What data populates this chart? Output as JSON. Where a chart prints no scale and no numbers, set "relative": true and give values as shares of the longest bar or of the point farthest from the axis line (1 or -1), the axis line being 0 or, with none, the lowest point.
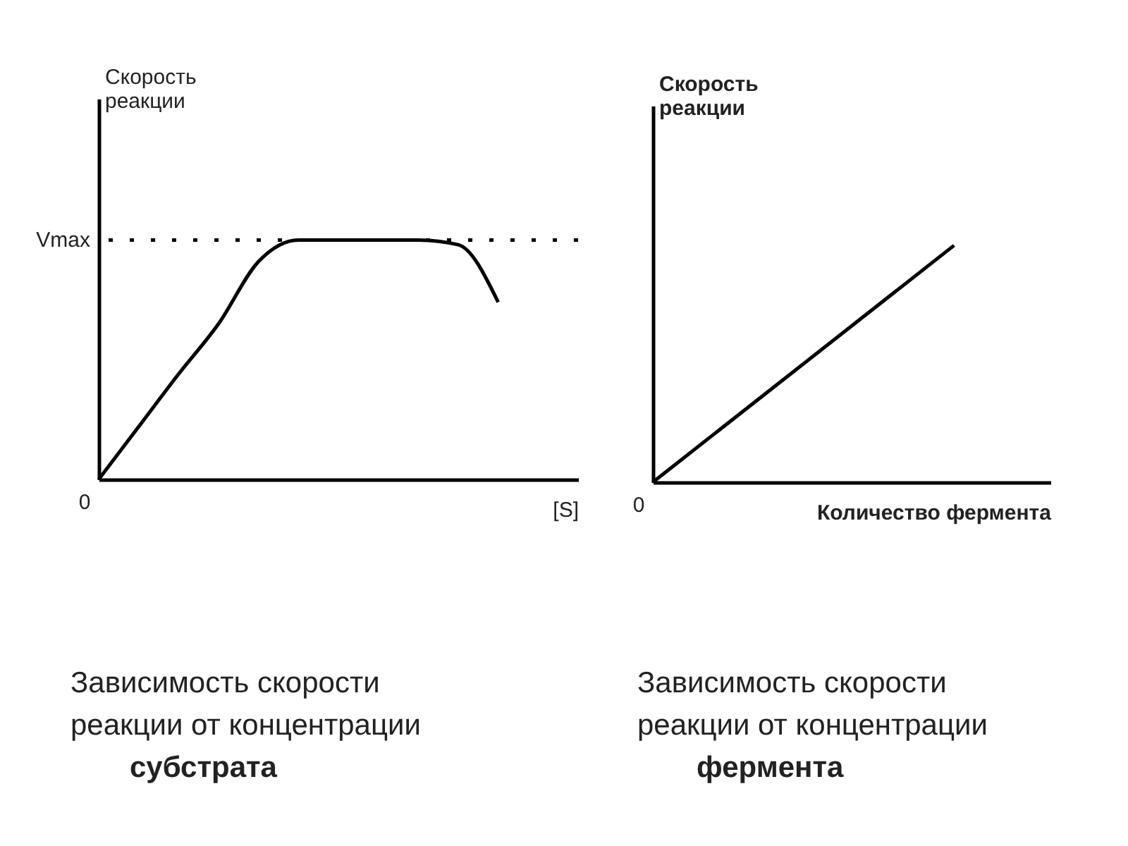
{
  "chart_data": [
    {
      "type": "line",
      "xlabel": "[S]",
      "ylabel": "Скорость реакции",
      "color": "#000000",
      "categories": [
        null,
        null,
        null,
        null,
        null,
        null,
        null,
        null,
        null,
        null,
        null
      ],
      "values": [
        0,
        0.22,
        0.44,
        0.65,
        0.91,
        1,
        1,
        1,
        1,
        0.98,
        0.74
      ],
      "relative": true,
      "ref_lines": [
        {
          "axis": "y",
          "value": 1,
          "label": "Vmax",
          "line_style": "dotted"
        }
      ],
      "annotations": [
        "0",
        "Зависимость скорости реакции от концентрации субстрата"
      ]
    },
    {
      "type": "line",
      "relative": true,
      "xlabel": "Количество фермента",
      "ylabel": "Скорость реакции",
      "color": "#000000",
      "categories": [
        null,
        null
      ],
      "values": [
        0,
        1
      ],
      "annotations": [
        "0",
        "Зависимость скорости реакции от концентрации фермента"
      ]
    }
  ]
}
